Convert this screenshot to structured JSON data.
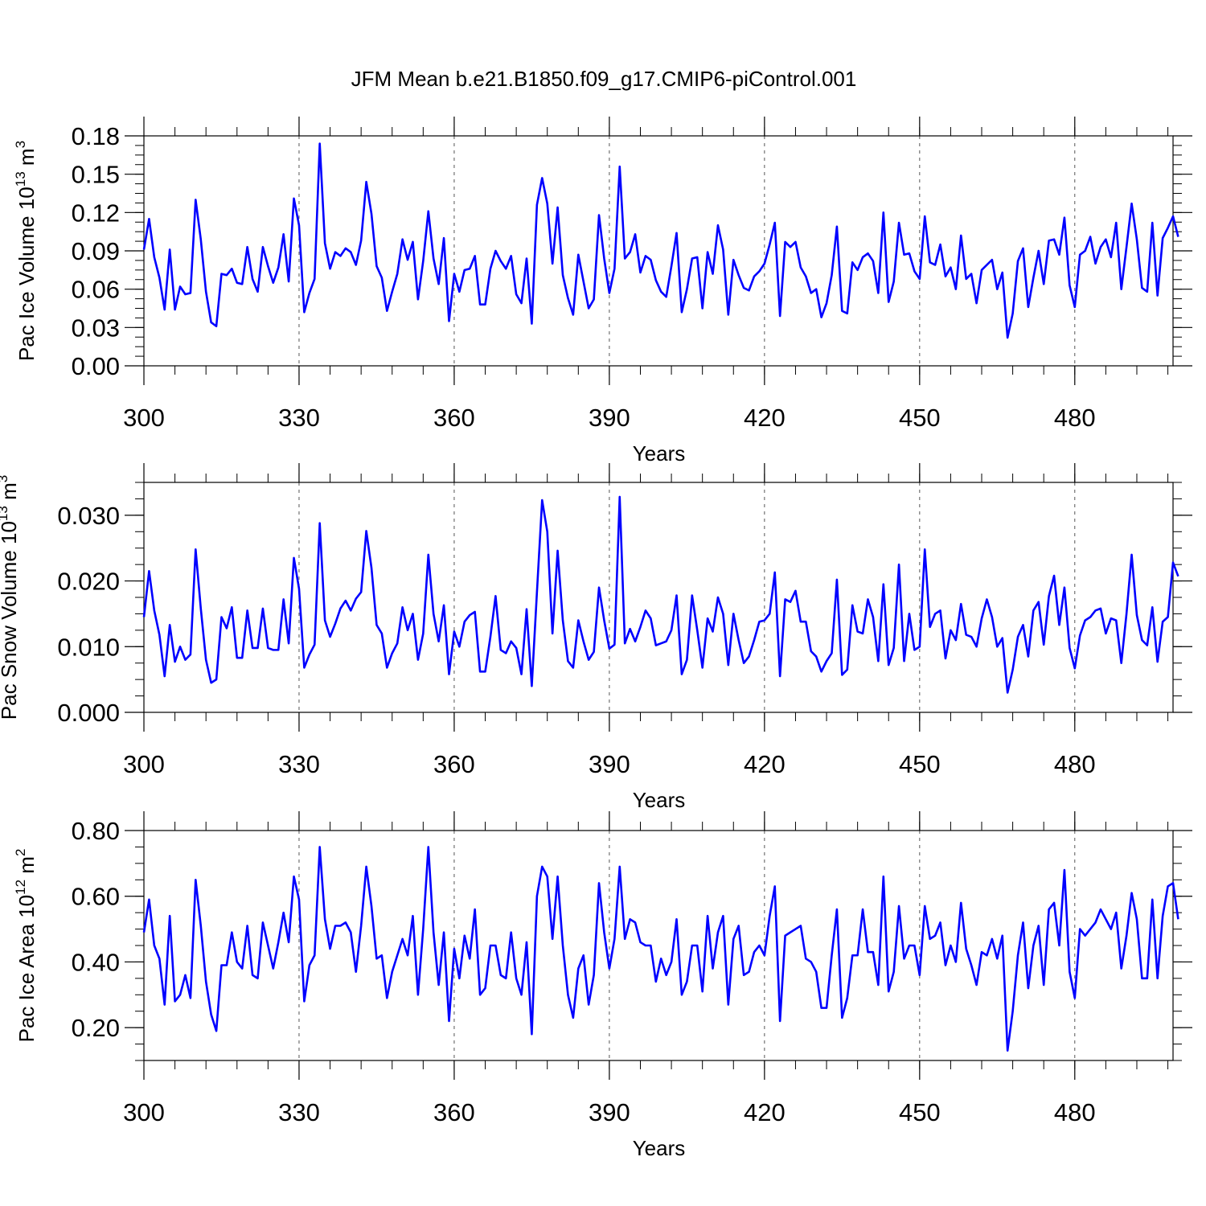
{
  "figure": {
    "title": "JFM Mean b.e21.B1850.f09_g17.CMIP6-piControl.001"
  },
  "colors": {
    "line": "#0000ff",
    "axis": "#000000",
    "grid": "#555555"
  },
  "chart_data": [
    {
      "type": "line",
      "id": "ice-volume",
      "ylabel": {
        "main": "Pac Ice Volume 10",
        "exp": "13",
        "unit": " m",
        "unit_exp": "3"
      },
      "xlabel": "Years",
      "xlim": [
        300,
        499
      ],
      "ylim": [
        0.0,
        0.18
      ],
      "y_ticks": [
        0.0,
        0.03,
        0.06,
        0.09,
        0.12,
        0.15,
        0.18
      ],
      "y_tick_labels": [
        "0.00",
        "0.03",
        "0.06",
        "0.09",
        "0.12",
        "0.15",
        "0.18"
      ],
      "x_ticks": [
        300,
        330,
        360,
        390,
        420,
        450,
        480
      ],
      "x_tick_labels": [
        "300",
        "330",
        "360",
        "390",
        "420",
        "450",
        "480"
      ],
      "x_grid": [
        330,
        360,
        390,
        420,
        450,
        480
      ],
      "x_start": 300,
      "values": [
        0.091,
        0.115,
        0.085,
        0.069,
        0.044,
        0.091,
        0.044,
        0.062,
        0.056,
        0.057,
        0.13,
        0.099,
        0.058,
        0.034,
        0.031,
        0.072,
        0.071,
        0.076,
        0.065,
        0.064,
        0.093,
        0.068,
        0.058,
        0.093,
        0.078,
        0.065,
        0.077,
        0.103,
        0.066,
        0.131,
        0.11,
        0.042,
        0.057,
        0.068,
        0.174,
        0.096,
        0.076,
        0.089,
        0.086,
        0.092,
        0.089,
        0.079,
        0.098,
        0.144,
        0.119,
        0.078,
        0.069,
        0.043,
        0.058,
        0.072,
        0.099,
        0.083,
        0.097,
        0.052,
        0.082,
        0.121,
        0.084,
        0.064,
        0.1,
        0.035,
        0.072,
        0.058,
        0.075,
        0.076,
        0.086,
        0.048,
        0.048,
        0.076,
        0.09,
        0.082,
        0.076,
        0.086,
        0.056,
        0.049,
        0.084,
        0.033,
        0.126,
        0.147,
        0.127,
        0.08,
        0.124,
        0.071,
        0.053,
        0.04,
        0.087,
        0.066,
        0.045,
        0.052,
        0.118,
        0.084,
        0.057,
        0.076,
        0.156,
        0.084,
        0.089,
        0.103,
        0.073,
        0.086,
        0.083,
        0.067,
        0.058,
        0.054,
        0.078,
        0.104,
        0.042,
        0.06,
        0.084,
        0.085,
        0.045,
        0.089,
        0.072,
        0.11,
        0.091,
        0.04,
        0.083,
        0.071,
        0.061,
        0.059,
        0.07,
        0.074,
        0.08,
        0.095,
        0.112,
        0.039,
        0.097,
        0.093,
        0.097,
        0.077,
        0.07,
        0.057,
        0.06,
        0.038,
        0.049,
        0.071,
        0.109,
        0.043,
        0.041,
        0.081,
        0.075,
        0.085,
        0.088,
        0.082,
        0.057,
        0.12,
        0.05,
        0.066,
        0.112,
        0.087,
        0.088,
        0.074,
        0.068,
        0.117,
        0.081,
        0.079,
        0.095,
        0.07,
        0.077,
        0.06,
        0.102,
        0.068,
        0.072,
        0.049,
        0.075,
        0.079,
        0.083,
        0.06,
        0.073,
        0.022,
        0.041,
        0.082,
        0.092,
        0.046,
        0.069,
        0.09,
        0.064,
        0.098,
        0.099,
        0.087,
        0.116,
        0.063,
        0.046,
        0.087,
        0.09,
        0.101,
        0.08,
        0.093,
        0.099,
        0.085,
        0.112,
        0.06,
        0.093,
        0.127,
        0.099,
        0.061,
        0.058,
        0.112,
        0.055,
        0.1,
        0.108,
        0.117,
        0.101
      ]
    },
    {
      "type": "line",
      "id": "snow-volume",
      "ylabel": {
        "main": "Pac Snow Volume 10",
        "exp": "13",
        "unit": " m",
        "unit_exp": "3"
      },
      "xlabel": "Years",
      "xlim": [
        300,
        499
      ],
      "ylim": [
        0.0,
        0.035
      ],
      "y_ticks": [
        0.0,
        0.01,
        0.02,
        0.03
      ],
      "y_tick_labels": [
        "0.000",
        "0.010",
        "0.020",
        "0.030"
      ],
      "x_ticks": [
        300,
        330,
        360,
        390,
        420,
        450,
        480
      ],
      "x_tick_labels": [
        "300",
        "330",
        "360",
        "390",
        "420",
        "450",
        "480"
      ],
      "x_grid": [
        330,
        360,
        390,
        420,
        450,
        480
      ],
      "x_start": 300,
      "values": [
        0.0145,
        0.0215,
        0.0155,
        0.0118,
        0.0055,
        0.0133,
        0.0077,
        0.01,
        0.008,
        0.0088,
        0.0248,
        0.0158,
        0.008,
        0.0045,
        0.005,
        0.0145,
        0.0128,
        0.016,
        0.0083,
        0.0083,
        0.0155,
        0.0098,
        0.0098,
        0.0158,
        0.0098,
        0.0095,
        0.0095,
        0.0172,
        0.0105,
        0.0235,
        0.0188,
        0.0068,
        0.0088,
        0.0103,
        0.0288,
        0.014,
        0.0115,
        0.0135,
        0.0158,
        0.017,
        0.0155,
        0.0173,
        0.0183,
        0.0276,
        0.022,
        0.0133,
        0.012,
        0.0068,
        0.009,
        0.0105,
        0.016,
        0.0125,
        0.015,
        0.008,
        0.012,
        0.024,
        0.015,
        0.0108,
        0.0163,
        0.0058,
        0.0123,
        0.01,
        0.0138,
        0.0148,
        0.0153,
        0.0062,
        0.0062,
        0.0115,
        0.0177,
        0.0095,
        0.009,
        0.0108,
        0.0098,
        0.0058,
        0.0157,
        0.004,
        0.0183,
        0.0323,
        0.0275,
        0.012,
        0.0246,
        0.014,
        0.0078,
        0.0068,
        0.014,
        0.0108,
        0.008,
        0.0092,
        0.019,
        0.014,
        0.0097,
        0.0103,
        0.0328,
        0.0105,
        0.0127,
        0.0108,
        0.013,
        0.0155,
        0.0143,
        0.0102,
        0.0105,
        0.0108,
        0.0125,
        0.0178,
        0.0058,
        0.008,
        0.0178,
        0.0125,
        0.0068,
        0.0143,
        0.0123,
        0.0175,
        0.015,
        0.0072,
        0.015,
        0.011,
        0.0075,
        0.0085,
        0.011,
        0.0138,
        0.014,
        0.015,
        0.0213,
        0.0055,
        0.0172,
        0.0168,
        0.0185,
        0.0138,
        0.0138,
        0.0093,
        0.0085,
        0.0062,
        0.0078,
        0.009,
        0.0202,
        0.0057,
        0.0065,
        0.0163,
        0.0123,
        0.012,
        0.0172,
        0.0145,
        0.0078,
        0.0195,
        0.0072,
        0.0098,
        0.0225,
        0.0078,
        0.015,
        0.0095,
        0.01,
        0.0248,
        0.013,
        0.015,
        0.0155,
        0.0082,
        0.0125,
        0.011,
        0.0165,
        0.0118,
        0.0115,
        0.01,
        0.0143,
        0.0172,
        0.0145,
        0.01,
        0.0113,
        0.003,
        0.0065,
        0.0115,
        0.0133,
        0.0085,
        0.0155,
        0.0168,
        0.0103,
        0.0177,
        0.0208,
        0.0133,
        0.019,
        0.0098,
        0.0067,
        0.0117,
        0.014,
        0.0145,
        0.0155,
        0.0158,
        0.012,
        0.0143,
        0.014,
        0.0075,
        0.015,
        0.024,
        0.0148,
        0.011,
        0.0102,
        0.016,
        0.0077,
        0.0138,
        0.0145,
        0.0228,
        0.0207
      ]
    },
    {
      "type": "line",
      "id": "ice-area",
      "ylabel": {
        "main": "Pac Ice Area 10",
        "exp": "12",
        "unit": " m",
        "unit_exp": "2"
      },
      "xlabel": "Years",
      "xlim": [
        300,
        499
      ],
      "ylim": [
        0.1,
        0.8
      ],
      "y_ticks": [
        0.2,
        0.4,
        0.6,
        0.8
      ],
      "y_tick_labels": [
        "0.20",
        "0.40",
        "0.60",
        "0.80"
      ],
      "x_ticks": [
        300,
        330,
        360,
        390,
        420,
        450,
        480
      ],
      "x_tick_labels": [
        "300",
        "330",
        "360",
        "390",
        "420",
        "450",
        "480"
      ],
      "x_grid": [
        330,
        360,
        390,
        420,
        450,
        480
      ],
      "x_start": 300,
      "values": [
        0.49,
        0.59,
        0.45,
        0.41,
        0.27,
        0.54,
        0.28,
        0.3,
        0.36,
        0.29,
        0.65,
        0.51,
        0.34,
        0.24,
        0.19,
        0.39,
        0.39,
        0.49,
        0.4,
        0.38,
        0.51,
        0.36,
        0.35,
        0.52,
        0.45,
        0.38,
        0.46,
        0.55,
        0.46,
        0.66,
        0.59,
        0.28,
        0.39,
        0.42,
        0.75,
        0.53,
        0.44,
        0.51,
        0.51,
        0.52,
        0.49,
        0.37,
        0.51,
        0.69,
        0.57,
        0.41,
        0.42,
        0.29,
        0.37,
        0.42,
        0.47,
        0.42,
        0.54,
        0.3,
        0.5,
        0.75,
        0.49,
        0.33,
        0.49,
        0.22,
        0.44,
        0.35,
        0.48,
        0.41,
        0.56,
        0.3,
        0.32,
        0.45,
        0.45,
        0.36,
        0.35,
        0.49,
        0.35,
        0.3,
        0.46,
        0.18,
        0.6,
        0.69,
        0.66,
        0.47,
        0.66,
        0.45,
        0.3,
        0.23,
        0.38,
        0.42,
        0.27,
        0.36,
        0.64,
        0.49,
        0.38,
        0.47,
        0.69,
        0.47,
        0.53,
        0.52,
        0.46,
        0.45,
        0.45,
        0.34,
        0.41,
        0.36,
        0.4,
        0.53,
        0.3,
        0.34,
        0.45,
        0.45,
        0.31,
        0.54,
        0.38,
        0.49,
        0.54,
        0.27,
        0.47,
        0.51,
        0.36,
        0.37,
        0.43,
        0.45,
        0.42,
        0.54,
        0.63,
        0.22,
        0.48,
        0.49,
        0.5,
        0.51,
        0.41,
        0.4,
        0.37,
        0.26,
        0.26,
        0.42,
        0.56,
        0.23,
        0.29,
        0.42,
        0.42,
        0.56,
        0.43,
        0.43,
        0.33,
        0.66,
        0.31,
        0.37,
        0.57,
        0.41,
        0.45,
        0.45,
        0.36,
        0.57,
        0.47,
        0.48,
        0.52,
        0.39,
        0.45,
        0.4,
        0.58,
        0.44,
        0.39,
        0.33,
        0.43,
        0.42,
        0.47,
        0.41,
        0.48,
        0.13,
        0.25,
        0.42,
        0.52,
        0.32,
        0.45,
        0.51,
        0.33,
        0.56,
        0.58,
        0.45,
        0.68,
        0.37,
        0.29,
        0.5,
        0.48,
        0.5,
        0.52,
        0.56,
        0.53,
        0.5,
        0.55,
        0.38,
        0.48,
        0.61,
        0.53,
        0.35,
        0.35,
        0.59,
        0.35,
        0.54,
        0.63,
        0.64,
        0.53
      ]
    }
  ]
}
